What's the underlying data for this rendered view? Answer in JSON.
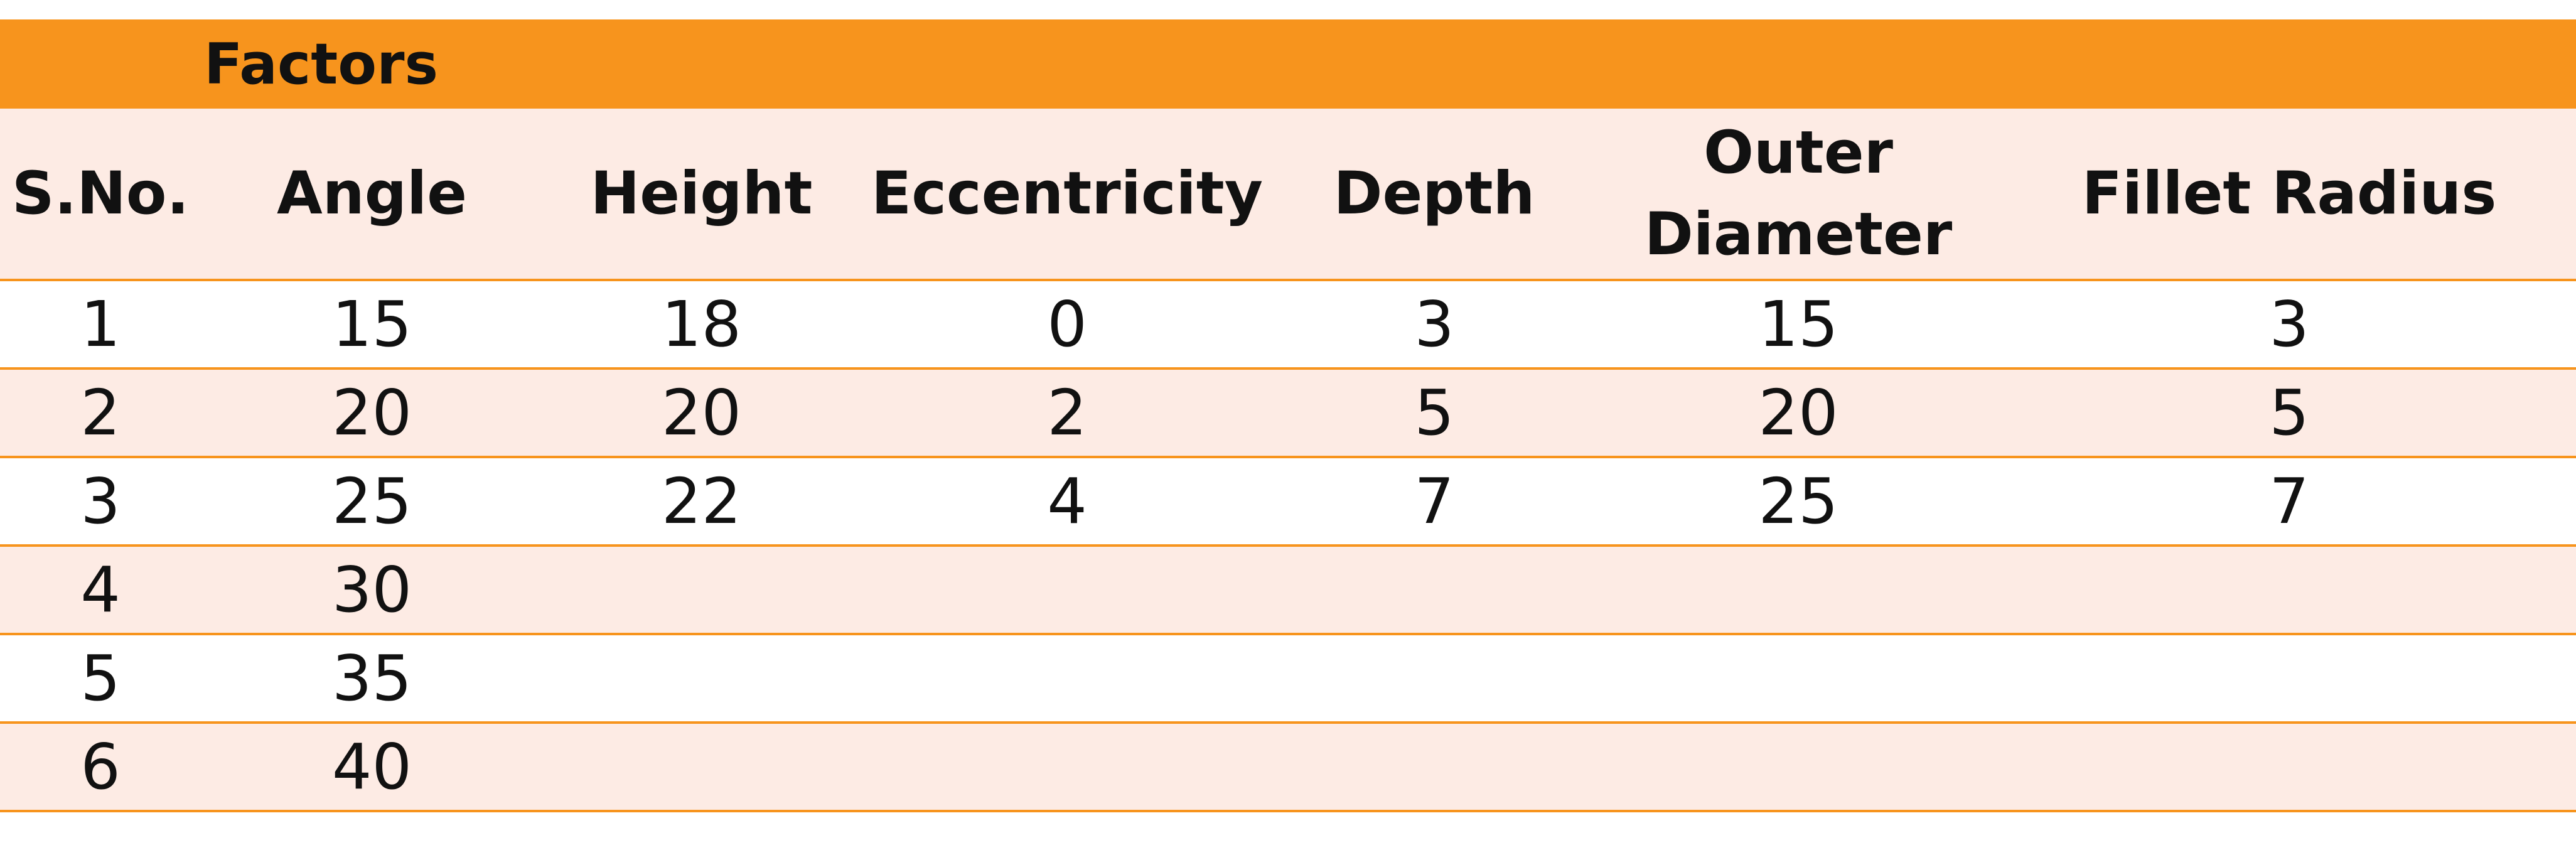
{
  "table": {
    "title": "Factors",
    "headers": [
      [
        "S.No."
      ],
      [
        "Angle"
      ],
      [
        "Height"
      ],
      [
        "Eccentricity"
      ],
      [
        "Depth"
      ],
      [
        "Outer",
        "Diameter"
      ],
      [
        "Fillet Radius"
      ]
    ],
    "rows": [
      [
        "1",
        "15",
        "18",
        "0",
        "3",
        "15",
        "3"
      ],
      [
        "2",
        "20",
        "20",
        "2",
        "5",
        "20",
        "5"
      ],
      [
        "3",
        "25",
        "22",
        "4",
        "7",
        "25",
        "7"
      ],
      [
        "4",
        "30",
        "",
        "",
        "",
        "",
        ""
      ],
      [
        "5",
        "35",
        "",
        "",
        "",
        "",
        ""
      ],
      [
        "6",
        "40",
        "",
        "",
        "",
        "",
        ""
      ]
    ]
  },
  "colors": {
    "title_bar": "#f7941d",
    "band": "#fdebe4",
    "white": "#ffffff",
    "rule": "#f7941d"
  }
}
